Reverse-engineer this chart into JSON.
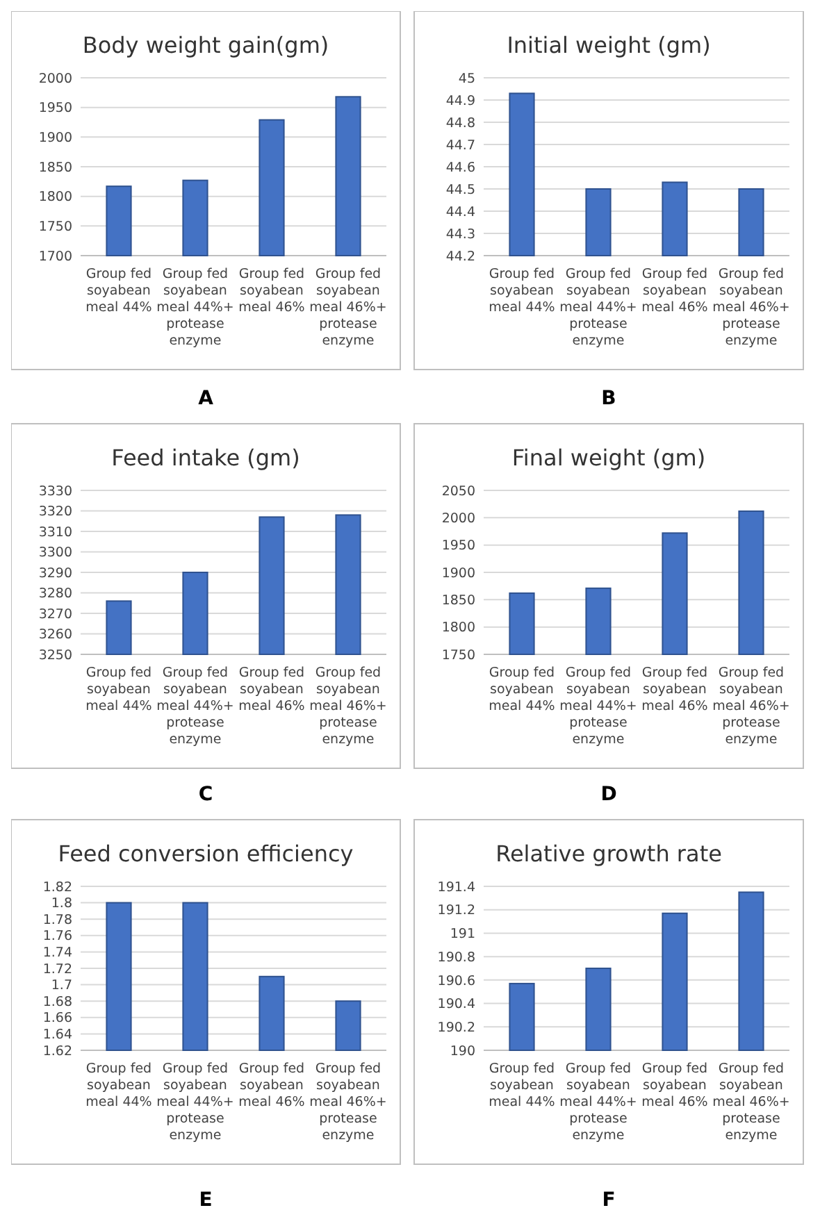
{
  "chart_data": [
    {
      "type": "bar",
      "title": "Body weight gain(gm)",
      "categories": [
        "Group fed soyabean meal 44%",
        "Group fed soyabean meal 44%+ protease enzyme",
        "Group fed soyabean meal 46%",
        "Group fed soyabean meal 46%+ protease enzyme"
      ],
      "values": [
        1817,
        1827,
        1929,
        1968
      ],
      "color": "#4472c4",
      "ylim": [
        1700,
        2000
      ],
      "yticks": [
        1700,
        1750,
        1800,
        1850,
        1900,
        1950,
        2000
      ],
      "grid": "y",
      "annotations": [
        "A"
      ]
    },
    {
      "type": "bar",
      "title": "Initial weight (gm)",
      "categories": [
        "Group fed soyabean meal 44%",
        "Group fed soyabean meal 44%+ protease enzyme",
        "Group fed soyabean meal 46%",
        "Group fed soyabean meal 46%+ protease enzyme"
      ],
      "values": [
        44.93,
        44.5,
        44.53,
        44.5
      ],
      "color": "#4472c4",
      "ylim": [
        44.2,
        45
      ],
      "yticks": [
        44.2,
        44.3,
        44.4,
        44.5,
        44.6,
        44.7,
        44.8,
        44.9,
        45
      ],
      "grid": "y",
      "annotations": [
        "B"
      ]
    },
    {
      "type": "bar",
      "title": "Feed intake (gm)",
      "categories": [
        "Group fed soyabean meal 44%",
        "Group fed soyabean meal 44%+ protease enzyme",
        "Group fed soyabean meal 46%",
        "Group fed soyabean meal 46%+ protease enzyme"
      ],
      "values": [
        3276,
        3290,
        3317,
        3318
      ],
      "color": "#4472c4",
      "ylim": [
        3250,
        3330
      ],
      "yticks": [
        3250,
        3260,
        3270,
        3280,
        3290,
        3300,
        3310,
        3320,
        3330
      ],
      "grid": "y",
      "annotations": [
        "C"
      ]
    },
    {
      "type": "bar",
      "title": "Final weight (gm)",
      "categories": [
        "Group fed soyabean meal 44%",
        "Group fed soyabean meal 44%+ protease enzyme",
        "Group fed soyabean meal 46%",
        "Group fed soyabean meal 46%+ protease enzyme"
      ],
      "values": [
        1862,
        1871,
        1972,
        2012
      ],
      "color": "#4472c4",
      "ylim": [
        1750,
        2050
      ],
      "yticks": [
        1750,
        1800,
        1850,
        1900,
        1950,
        2000,
        2050
      ],
      "grid": "y",
      "annotations": [
        "D"
      ]
    },
    {
      "type": "bar",
      "title": "Feed conversion efficiency",
      "categories": [
        "Group fed soyabean meal 44%",
        "Group fed soyabean meal 44%+ protease enzyme",
        "Group fed soyabean meal 46%",
        "Group fed soyabean meal 46%+ protease enzyme"
      ],
      "values": [
        1.8,
        1.8,
        1.71,
        1.68
      ],
      "color": "#4472c4",
      "ylim": [
        1.62,
        1.82
      ],
      "yticks": [
        1.62,
        1.64,
        1.66,
        1.68,
        1.7,
        1.72,
        1.74,
        1.76,
        1.78,
        1.8,
        1.82
      ],
      "grid": "y",
      "annotations": [
        "E"
      ]
    },
    {
      "type": "bar",
      "title": "Relative growth rate",
      "categories": [
        "Group fed soyabean meal 44%",
        "Group fed soyabean meal 44%+ protease enzyme",
        "Group fed soyabean meal 46%",
        "Group fed soyabean meal 46%+ protease enzyme"
      ],
      "values": [
        190.57,
        190.7,
        191.17,
        191.35
      ],
      "color": "#4472c4",
      "ylim": [
        190,
        191.4
      ],
      "yticks": [
        190,
        190.2,
        190.4,
        190.6,
        190.8,
        191,
        191.2,
        191.4
      ],
      "grid": "y",
      "annotations": [
        "F"
      ]
    }
  ]
}
